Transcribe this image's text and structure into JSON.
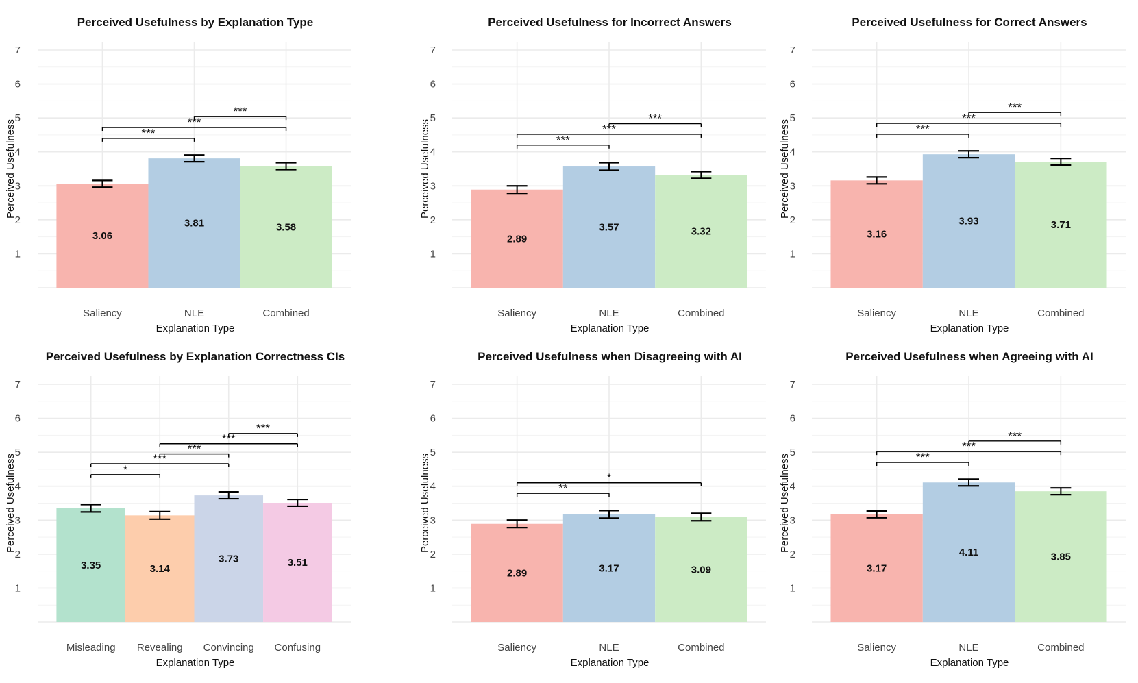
{
  "chart_data": [
    {
      "type": "bar",
      "title": "Perceived Usefulness by Explanation Type",
      "xlabel": "Explanation Type",
      "ylabel": "Perceived Usefulness",
      "ylim": [
        0,
        7
      ],
      "yticks": [
        "1",
        "2",
        "3",
        "4",
        "5",
        "6",
        "7"
      ],
      "categories": [
        "Saliency",
        "NLE",
        "Combined"
      ],
      "values": [
        3.06,
        3.81,
        3.58
      ],
      "value_labels": [
        "3.06",
        "3.81",
        "3.58"
      ],
      "errors": [
        0.1,
        0.1,
        0.1
      ],
      "colors": [
        "#f8b4ae",
        "#b3cde3",
        "#ccebc5"
      ],
      "significance": [
        {
          "from": 0,
          "to": 1,
          "y": 4.4,
          "label": "***"
        },
        {
          "from": 0,
          "to": 2,
          "y": 4.72,
          "label": "***"
        },
        {
          "from": 1,
          "to": 2,
          "y": 5.04,
          "label": "***"
        }
      ]
    },
    {
      "type": "bar",
      "title": "Perceived Usefulness for Incorrect Answers",
      "xlabel": "Explanation Type",
      "ylabel": "Perceived Usefulness",
      "ylim": [
        0,
        7
      ],
      "yticks": [
        "1",
        "2",
        "3",
        "4",
        "5",
        "6",
        "7"
      ],
      "categories": [
        "Saliency",
        "NLE",
        "Combined"
      ],
      "values": [
        2.89,
        3.57,
        3.32
      ],
      "value_labels": [
        "2.89",
        "3.57",
        "3.32"
      ],
      "errors": [
        0.11,
        0.11,
        0.1
      ],
      "colors": [
        "#f8b4ae",
        "#b3cde3",
        "#ccebc5"
      ],
      "significance": [
        {
          "from": 0,
          "to": 1,
          "y": 4.2,
          "label": "***"
        },
        {
          "from": 0,
          "to": 2,
          "y": 4.52,
          "label": "***"
        },
        {
          "from": 1,
          "to": 2,
          "y": 4.83,
          "label": "***"
        }
      ]
    },
    {
      "type": "bar",
      "title": "Perceived Usefulness for Correct Answers",
      "xlabel": "Explanation Type",
      "ylabel": "Perceived Usefulness",
      "ylim": [
        0,
        7
      ],
      "yticks": [
        "1",
        "2",
        "3",
        "4",
        "5",
        "6",
        "7"
      ],
      "categories": [
        "Saliency",
        "NLE",
        "Combined"
      ],
      "values": [
        3.16,
        3.93,
        3.71
      ],
      "value_labels": [
        "3.16",
        "3.93",
        "3.71"
      ],
      "errors": [
        0.1,
        0.1,
        0.1
      ],
      "colors": [
        "#f8b4ae",
        "#b3cde3",
        "#ccebc5"
      ],
      "significance": [
        {
          "from": 0,
          "to": 1,
          "y": 4.52,
          "label": "***"
        },
        {
          "from": 0,
          "to": 2,
          "y": 4.84,
          "label": "***"
        },
        {
          "from": 1,
          "to": 2,
          "y": 5.16,
          "label": "***"
        }
      ]
    },
    {
      "type": "bar",
      "title": "Perceived Usefulness by Explanation Correctness CIs",
      "xlabel": "Explanation Type",
      "ylabel": "Perceived Usefulness",
      "ylim": [
        0,
        7
      ],
      "yticks": [
        "1",
        "2",
        "3",
        "4",
        "5",
        "6",
        "7"
      ],
      "categories": [
        "Misleading",
        "Revealing",
        "Convincing",
        "Confusing"
      ],
      "values": [
        3.35,
        3.14,
        3.73,
        3.51
      ],
      "value_labels": [
        "3.35",
        "3.14",
        "3.73",
        "3.51"
      ],
      "errors": [
        0.11,
        0.11,
        0.1,
        0.1
      ],
      "colors": [
        "#b3e2cd",
        "#fdcdac",
        "#cbd5e8",
        "#f4cae4"
      ],
      "significance": [
        {
          "from": 0,
          "to": 1,
          "y": 4.34,
          "label": "*"
        },
        {
          "from": 0,
          "to": 2,
          "y": 4.66,
          "label": "***"
        },
        {
          "from": 1,
          "to": 2,
          "y": 4.95,
          "label": "***"
        },
        {
          "from": 1,
          "to": 3,
          "y": 5.25,
          "label": "***"
        },
        {
          "from": 2,
          "to": 3,
          "y": 5.55,
          "label": "***"
        }
      ]
    },
    {
      "type": "bar",
      "title": "Perceived Usefulness when Disagreeing with AI",
      "xlabel": "Explanation Type",
      "ylabel": "Perceived Usefulness",
      "ylim": [
        0,
        7
      ],
      "yticks": [
        "1",
        "2",
        "3",
        "4",
        "5",
        "6",
        "7"
      ],
      "categories": [
        "Saliency",
        "NLE",
        "Combined"
      ],
      "values": [
        2.89,
        3.17,
        3.09
      ],
      "value_labels": [
        "2.89",
        "3.17",
        "3.09"
      ],
      "errors": [
        0.11,
        0.11,
        0.11
      ],
      "colors": [
        "#f8b4ae",
        "#b3cde3",
        "#ccebc5"
      ],
      "significance": [
        {
          "from": 0,
          "to": 1,
          "y": 3.79,
          "label": "**"
        },
        {
          "from": 0,
          "to": 2,
          "y": 4.1,
          "label": "*"
        }
      ]
    },
    {
      "type": "bar",
      "title": "Perceived Usefulness when Agreeing with AI",
      "xlabel": "Explanation Type",
      "ylabel": "Perceived Usefulness",
      "ylim": [
        0,
        7
      ],
      "yticks": [
        "1",
        "2",
        "3",
        "4",
        "5",
        "6",
        "7"
      ],
      "categories": [
        "Saliency",
        "NLE",
        "Combined"
      ],
      "values": [
        3.17,
        4.11,
        3.85
      ],
      "value_labels": [
        "3.17",
        "4.11",
        "3.85"
      ],
      "errors": [
        0.1,
        0.1,
        0.1
      ],
      "colors": [
        "#f8b4ae",
        "#b3cde3",
        "#ccebc5"
      ],
      "significance": [
        {
          "from": 0,
          "to": 1,
          "y": 4.7,
          "label": "***"
        },
        {
          "from": 0,
          "to": 2,
          "y": 5.02,
          "label": "***"
        },
        {
          "from": 1,
          "to": 2,
          "y": 5.33,
          "label": "***"
        }
      ]
    }
  ]
}
